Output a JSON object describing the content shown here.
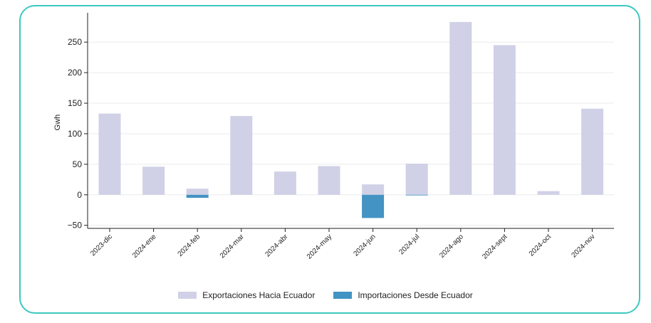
{
  "chart_data": {
    "type": "bar",
    "ylabel": "Gwh",
    "ylim": [
      -55,
      298
    ],
    "yticks": [
      -50,
      0,
      50,
      100,
      150,
      200,
      250
    ],
    "grid": true,
    "legend_position": "bottom-center",
    "categories": [
      "2023-dic",
      "2024-ene",
      "2024-feb",
      "2024-mar",
      "2024-abr",
      "2024-may",
      "2024-jun",
      "2024-jul",
      "2024-ago",
      "2024-sept",
      "2024-oct",
      "2024-nov"
    ],
    "series": [
      {
        "name": "Exportaciones Hacia Ecuador",
        "color": "#d0d1e6",
        "values": [
          133,
          46,
          10,
          129,
          38,
          47,
          17,
          51,
          283,
          245,
          6,
          141
        ]
      },
      {
        "name": "Importaciones Desde Ecuador",
        "color": "#4393c3",
        "values": [
          0,
          0,
          -5,
          0,
          0,
          0,
          -38,
          -1,
          0,
          0,
          0,
          0
        ]
      }
    ]
  }
}
